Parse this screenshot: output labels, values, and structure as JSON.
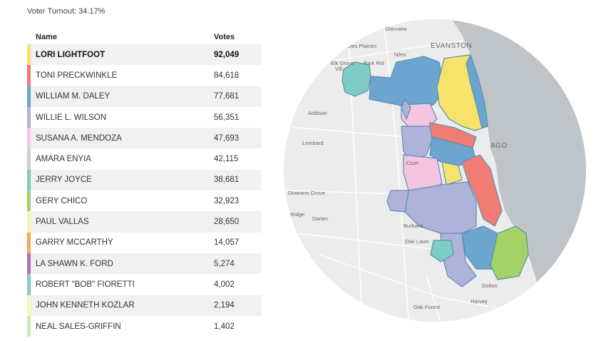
{
  "turnout_label": "Voter Turnout: 34.17%",
  "table": {
    "header_name": "Name",
    "header_votes": "Votes",
    "rows": [
      {
        "name": "LORI LIGHTFOOT",
        "votes": "92,049",
        "color": "#f7e26b",
        "winner": true
      },
      {
        "name": "TONI PRECKWINKLE",
        "votes": "84,618",
        "color": "#f07c74"
      },
      {
        "name": "WILLIAM M. DALEY",
        "votes": "77,681",
        "color": "#6ca5cf"
      },
      {
        "name": "WILLIE L. WILSON",
        "votes": "56,351",
        "color": "#b0b3d9"
      },
      {
        "name": "SUSANA A. MENDOZA",
        "votes": "47,693",
        "color": "#f5c4e0"
      },
      {
        "name": "AMARA ENYIA",
        "votes": "42,115",
        "color": "#cfcfcf"
      },
      {
        "name": "JERRY JOYCE",
        "votes": "38,681",
        "color": "#7fccc4"
      },
      {
        "name": "GERY CHICO",
        "votes": "32,923",
        "color": "#a3d366"
      },
      {
        "name": "PAUL VALLAS",
        "votes": "28,650",
        "color": "#fbf3a8"
      },
      {
        "name": "GARRY MCCARTHY",
        "votes": "14,057",
        "color": "#f6a65a"
      },
      {
        "name": "LA SHAWN K. FORD",
        "votes": "5,274",
        "color": "#a872bf"
      },
      {
        "name": "ROBERT \"BOB\" FIORETTI",
        "votes": "4,002",
        "color": "#86cdc2"
      },
      {
        "name": "JOHN KENNETH KOZLAR",
        "votes": "2,194",
        "color": "#fdf6b2"
      },
      {
        "name": "NEAL SALES-GRIFFIN",
        "votes": "1,402",
        "color": "#cde8c1"
      }
    ]
  },
  "map": {
    "place_labels": {
      "glenview": "Glenview",
      "des_plaines": "Des Plaines",
      "evanston": "EVANSTON",
      "niles": "Niles",
      "elk_grove": "Elk Grove",
      "elk_grove_2": "Vill",
      "park_ridge": "Park Rid",
      "addison": "Addison",
      "lombard": "Lombard",
      "chicago_fragment": "AGO",
      "cicero_fragment": "Cicer",
      "downers_grove": "Downers Grove",
      "woodridge_fragment": "oodridge",
      "darien": "Darien",
      "burbank": "Burbank",
      "oak_lawn": "Oak Lawn",
      "dolton": "Dolton",
      "harvey": "Harvey",
      "oak_forest": "Oak Forest"
    },
    "colors": {
      "lake": "#bfc4c8",
      "land": "#ececec",
      "boundary": "#5a8fb0"
    }
  }
}
